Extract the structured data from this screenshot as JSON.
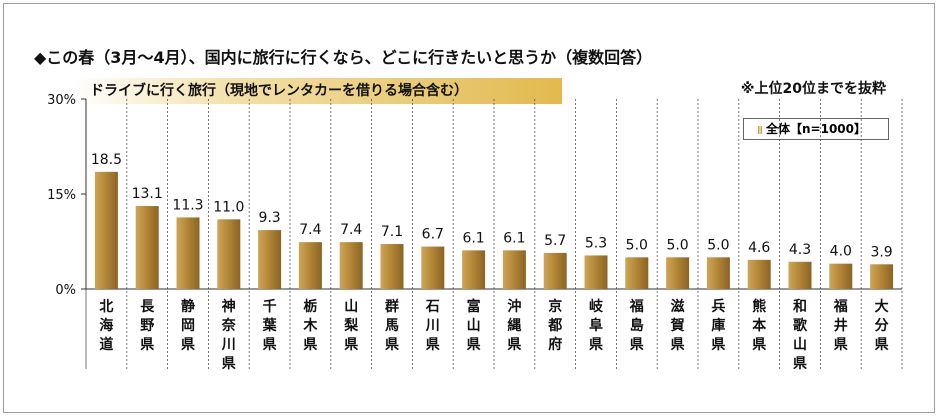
{
  "chart_data": {
    "type": "bar",
    "title": "◆この春（3月～4月）、国内に旅行に行くなら、どこに行きたいと思うか（複数回答）",
    "subtitle": "ドライブに行く旅行（現地でレンタカーを借りる場合含む）",
    "note": "※上位20位までを抜粋",
    "categories": [
      "北海道",
      "長野県",
      "静岡県",
      "神奈川県",
      "千葉県",
      "栃木県",
      "山梨県",
      "群馬県",
      "石川県",
      "富山県",
      "沖縄県",
      "京都府",
      "岐阜県",
      "福島県",
      "滋賀県",
      "兵庫県",
      "熊本県",
      "和歌山県",
      "福井県",
      "大分県"
    ],
    "series": [
      {
        "name": "全体【n=1000】",
        "values": [
          18.5,
          13.1,
          11.3,
          11.0,
          9.3,
          7.4,
          7.4,
          7.1,
          6.7,
          6.1,
          6.1,
          5.7,
          5.3,
          5.0,
          5.0,
          5.0,
          4.6,
          4.3,
          4.0,
          3.9
        ]
      }
    ],
    "ylim": [
      0,
      30
    ],
    "yticks": [
      0,
      15,
      30
    ],
    "ytick_labels": [
      "0%",
      "15%",
      "30%"
    ],
    "grid": "vertical separators",
    "legend_position": "top-right",
    "colors": {
      "bar_gradient_start": "#cfa557",
      "bar_gradient_end": "#8a6424",
      "subtitle_band": "#e2b94e"
    }
  }
}
